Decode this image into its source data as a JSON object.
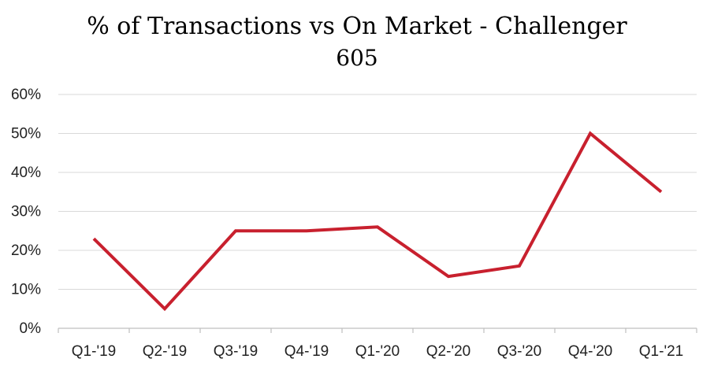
{
  "chart_data": {
    "type": "line",
    "title_line1": "% of Transactions vs On Market - Challenger",
    "title_line2": "605",
    "xlabel": "",
    "ylabel": "",
    "categories": [
      "Q1-'19",
      "Q2-'19",
      "Q3-'19",
      "Q4-'19",
      "Q1-'20",
      "Q2-'20",
      "Q3-'20",
      "Q4-'20",
      "Q1-'21"
    ],
    "series": [
      {
        "values": [
          23,
          5,
          25,
          25,
          26,
          13.3,
          16,
          50,
          35
        ]
      }
    ],
    "ylim": [
      0,
      60
    ],
    "yticks": [
      0,
      10,
      20,
      30,
      40,
      50,
      60
    ],
    "y_tick_format": "percent",
    "grid": true,
    "legend": "none",
    "colors": {
      "line": "#c8202e",
      "grid": "#d9d9d9",
      "axis": "#bfbfbf"
    }
  }
}
